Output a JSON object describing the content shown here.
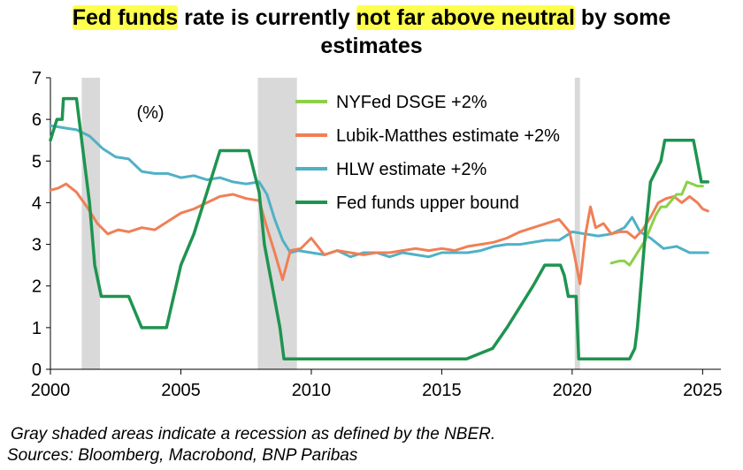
{
  "title": {
    "part1": "Fed funds",
    "part2": " rate is currently ",
    "part3": "not far above neutral",
    "part4": " by some",
    "line2": "estimates"
  },
  "footnotes": [
    "Gray shaded areas indicate a recession as defined by the NBER.",
    "Sources: Bloomberg, Macrobond, BNP Paribas"
  ],
  "chart_data": {
    "type": "line",
    "unit_label": "(%)",
    "xlim": [
      2000,
      2025.7
    ],
    "ylim": [
      0,
      7
    ],
    "x_ticks": [
      2000,
      2005,
      2010,
      2015,
      2020,
      2025
    ],
    "y_ticks": [
      0,
      1,
      2,
      3,
      4,
      5,
      6,
      7
    ],
    "grid": false,
    "legend_position": "top-center",
    "recessions": [
      [
        2001.2,
        2001.9
      ],
      [
        2007.95,
        2009.45
      ],
      [
        2020.1,
        2020.3
      ]
    ],
    "series": [
      {
        "name": "NYFed DSGE +2%",
        "color": "#8cd04a",
        "x": [
          2021.5,
          2021.8,
          2022.0,
          2022.2,
          2022.4,
          2022.6,
          2022.8,
          2023.0,
          2023.2,
          2023.4,
          2023.6,
          2023.8,
          2024.0,
          2024.2,
          2024.4,
          2024.6,
          2024.8,
          2025.0
        ],
        "values": [
          2.55,
          2.6,
          2.6,
          2.5,
          2.7,
          2.9,
          3.1,
          3.4,
          3.7,
          3.9,
          3.9,
          4.05,
          4.2,
          4.2,
          4.5,
          4.45,
          4.4,
          4.4
        ]
      },
      {
        "name": "Lubik-Matthes estimate +2%",
        "color": "#f07f56",
        "x": [
          2000,
          2000.3,
          2000.6,
          2001.0,
          2001.4,
          2001.8,
          2002.2,
          2002.6,
          2003.0,
          2003.5,
          2004.0,
          2004.5,
          2005.0,
          2005.5,
          2006.0,
          2006.5,
          2007.0,
          2007.5,
          2008.0,
          2008.3,
          2008.6,
          2008.9,
          2009.2,
          2009.6,
          2010.0,
          2010.5,
          2011.0,
          2011.5,
          2012.0,
          2012.5,
          2013.0,
          2013.5,
          2014.0,
          2014.5,
          2015.0,
          2015.5,
          2016.0,
          2016.5,
          2017.0,
          2017.5,
          2018.0,
          2018.5,
          2019.0,
          2019.5,
          2019.9,
          2020.1,
          2020.3,
          2020.5,
          2020.7,
          2020.9,
          2021.2,
          2021.5,
          2021.8,
          2022.1,
          2022.4,
          2022.7,
          2023.0,
          2023.3,
          2023.6,
          2023.9,
          2024.2,
          2024.5,
          2024.8,
          2025.0,
          2025.2
        ],
        "values": [
          4.3,
          4.35,
          4.45,
          4.25,
          3.9,
          3.5,
          3.25,
          3.35,
          3.3,
          3.4,
          3.35,
          3.55,
          3.75,
          3.85,
          4.0,
          4.15,
          4.2,
          4.1,
          4.05,
          3.4,
          2.8,
          2.15,
          2.85,
          2.9,
          3.15,
          2.75,
          2.85,
          2.8,
          2.75,
          2.8,
          2.8,
          2.85,
          2.9,
          2.85,
          2.9,
          2.85,
          2.95,
          3.0,
          3.05,
          3.15,
          3.3,
          3.4,
          3.5,
          3.6,
          3.3,
          2.7,
          2.05,
          3.2,
          3.9,
          3.4,
          3.5,
          3.25,
          3.3,
          3.3,
          3.15,
          3.35,
          3.65,
          4.0,
          4.1,
          4.15,
          4.0,
          4.15,
          4.0,
          3.85,
          3.8
        ]
      },
      {
        "name": "HLW estimate +2%",
        "color": "#4fb1c6",
        "x": [
          2000,
          2000.5,
          2001.0,
          2001.5,
          2002.0,
          2002.5,
          2003.0,
          2003.5,
          2004.0,
          2004.5,
          2005.0,
          2005.5,
          2006.0,
          2006.5,
          2007.0,
          2007.5,
          2008.0,
          2008.3,
          2008.6,
          2008.9,
          2009.2,
          2009.5,
          2010.0,
          2010.5,
          2011.0,
          2011.5,
          2012.0,
          2012.5,
          2013.0,
          2013.5,
          2014.0,
          2014.5,
          2015.0,
          2015.5,
          2016.0,
          2016.5,
          2017.0,
          2017.5,
          2018.0,
          2018.5,
          2019.0,
          2019.5,
          2020.0,
          2020.5,
          2021.0,
          2021.5,
          2022.0,
          2022.3,
          2022.6,
          2023.0,
          2023.5,
          2024.0,
          2024.5,
          2025.0,
          2025.2
        ],
        "values": [
          5.85,
          5.8,
          5.75,
          5.6,
          5.3,
          5.1,
          5.05,
          4.75,
          4.7,
          4.7,
          4.6,
          4.65,
          4.55,
          4.6,
          4.5,
          4.45,
          4.5,
          4.2,
          3.6,
          3.1,
          2.8,
          2.85,
          2.8,
          2.75,
          2.85,
          2.7,
          2.8,
          2.8,
          2.7,
          2.8,
          2.75,
          2.7,
          2.8,
          2.8,
          2.8,
          2.85,
          2.95,
          3.0,
          3.0,
          3.05,
          3.1,
          3.1,
          3.3,
          3.25,
          3.2,
          3.25,
          3.4,
          3.65,
          3.3,
          3.15,
          2.9,
          2.95,
          2.8,
          2.8,
          2.8
        ]
      },
      {
        "name": "Fed funds upper bound",
        "color": "#1e9450",
        "x": [
          2000,
          2000.25,
          2000.45,
          2000.5,
          2001.0,
          2001.1,
          2001.3,
          2001.5,
          2001.7,
          2001.95,
          2003.0,
          2003.5,
          2004.45,
          2005.0,
          2005.5,
          2006.0,
          2006.5,
          2007.6,
          2007.8,
          2008.0,
          2008.2,
          2008.5,
          2008.8,
          2008.95,
          2015.95,
          2016.95,
          2017.5,
          2018.0,
          2018.5,
          2018.95,
          2019.55,
          2019.7,
          2019.85,
          2020.15,
          2020.25,
          2022.2,
          2022.4,
          2022.5,
          2022.6,
          2022.8,
          2023.0,
          2023.2,
          2023.4,
          2023.55,
          2024.65,
          2024.8,
          2024.95,
          2025.2
        ],
        "values": [
          5.5,
          6.0,
          6.0,
          6.5,
          6.5,
          6.0,
          5.0,
          4.0,
          2.5,
          1.75,
          1.75,
          1.0,
          1.0,
          2.5,
          3.25,
          4.25,
          5.25,
          5.25,
          4.75,
          4.25,
          3.0,
          2.0,
          1.0,
          0.25,
          0.25,
          0.5,
          1.0,
          1.5,
          2.0,
          2.5,
          2.5,
          2.25,
          1.75,
          1.75,
          0.25,
          0.25,
          0.5,
          1.0,
          1.75,
          3.25,
          4.5,
          4.75,
          5.0,
          5.5,
          5.5,
          5.0,
          4.5,
          4.5
        ]
      }
    ]
  }
}
